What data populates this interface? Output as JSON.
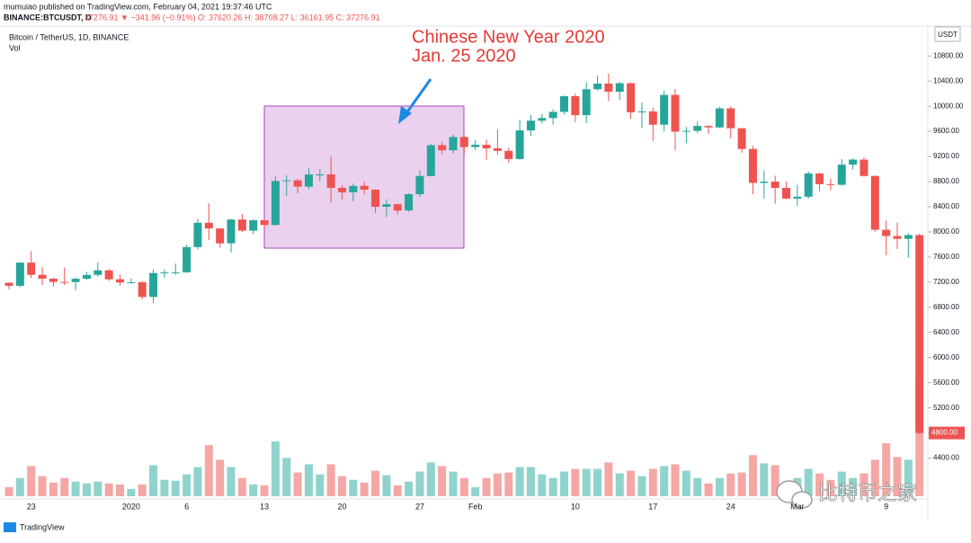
{
  "header": {
    "publisher": "mumuiao published on TradingView.com, February 04, 2021 19:37:46 UTC",
    "symbol": "BINANCE:BTCUSDT, D",
    "quote": "37276.91 ▼ −341.96 (−0.91%) O: 37620.26 H: 38708.27 L: 36161.95 C: 37276.91"
  },
  "chart_data": {
    "type": "candlestick",
    "title": "Bitcoin / TetherUS, 1D, BINANCE",
    "volume_label": "Vol",
    "currency": "USDT",
    "annotation": [
      "Chinese New Year 2020",
      "Jan. 25 2020"
    ],
    "categories": [
      null,
      null,
      "23",
      null,
      null,
      null,
      null,
      null,
      null,
      null,
      null,
      "2020",
      null,
      null,
      null,
      null,
      "6",
      null,
      null,
      null,
      null,
      null,
      null,
      "13",
      null,
      null,
      null,
      null,
      null,
      null,
      "20",
      null,
      null,
      null,
      null,
      null,
      null,
      "27",
      null,
      null,
      null,
      null,
      "Feb",
      null,
      null,
      null,
      null,
      null,
      null,
      null,
      null,
      "10",
      null,
      null,
      null,
      null,
      null,
      null,
      "17",
      null,
      null,
      null,
      null,
      null,
      null,
      "24",
      null,
      null,
      null,
      null,
      null,
      "Mar",
      null,
      null,
      null,
      null,
      null,
      null,
      null,
      "9",
      null,
      null,
      null
    ],
    "open": [
      7191,
      7142,
      7511,
      7317,
      7255,
      7204,
      7202,
      7254,
      7316,
      7388,
      7246,
      7195,
      7200,
      6965,
      7345,
      7354,
      7358,
      7758,
      8145,
      8055,
      7818,
      8197,
      8020,
      8185,
      8110,
      8810,
      8821,
      8720,
      8913,
      8915,
      8701,
      8631,
      8732,
      8672,
      8400,
      8440,
      8340,
      8600,
      8890,
      9380,
      9299,
      9510,
      9350,
      9387,
      9330,
      9290,
      9160,
      9615,
      9770,
      9812,
      9910,
      10160,
      9858,
      10270,
      10360,
      10230,
      10366,
      9904,
      9917,
      9706,
      10180,
      9596,
      9608,
      9686,
      9663,
      9966,
      9650,
      9320,
      8780,
      8800,
      8700,
      8530,
      8560,
      8930,
      8760,
      8750,
      9070,
      9150,
      8890,
      8034,
      7935,
      7890,
      7950
    ],
    "high": [
      7196,
      7518,
      7695,
      7436,
      7271,
      7435,
      7275,
      7365,
      7518,
      7409,
      7322,
      7255,
      7212,
      7406,
      7404,
      7495,
      7795,
      8207,
      8455,
      8055,
      8200,
      8286,
      8197,
      8196,
      8880,
      8900,
      8846,
      9012,
      9000,
      9198,
      8744,
      8770,
      8800,
      8677,
      8520,
      8450,
      8615,
      8979,
      9400,
      9440,
      9550,
      9530,
      9460,
      9470,
      9630,
      9340,
      9780,
      9860,
      9880,
      9950,
      10169,
      10200,
      10380,
      10490,
      10520,
      10390,
      10380,
      10060,
      9980,
      10250,
      10275,
      9670,
      9760,
      9700,
      9990,
      9999,
      9650,
      9370,
      8975,
      8895,
      8800,
      8750,
      8960,
      8940,
      8850,
      9160,
      9170,
      9190,
      8900,
      8180,
      8150,
      7980,
      7970
    ],
    "low": [
      7086,
      7119,
      7265,
      7157,
      7128,
      7157,
      7076,
      7238,
      7288,
      7220,
      7145,
      7175,
      6924,
      6871,
      7272,
      7318,
      7346,
      7723,
      7870,
      7750,
      7672,
      8000,
      7969,
      8055,
      8105,
      8574,
      8612,
      8680,
      8811,
      8466,
      8520,
      8490,
      8600,
      8303,
      8236,
      8280,
      8322,
      8560,
      8885,
      9240,
      9250,
      9250,
      9300,
      9150,
      9230,
      9100,
      9150,
      9530,
      9728,
      9705,
      9870,
      9746,
      9730,
      10250,
      10080,
      10100,
      9800,
      9650,
      9450,
      9600,
      9300,
      9410,
      9570,
      9560,
      9650,
      9490,
      9260,
      8600,
      8530,
      8450,
      8520,
      8410,
      8530,
      8650,
      8660,
      8740,
      8990,
      8880,
      8000,
      7630,
      7730,
      7590,
      4776
    ],
    "close": [
      7142,
      7511,
      7317,
      7255,
      7204,
      7202,
      7254,
      7316,
      7388,
      7246,
      7195,
      7200,
      6965,
      7345,
      7354,
      7358,
      7758,
      8145,
      8055,
      7818,
      8197,
      8020,
      8185,
      8110,
      8810,
      8821,
      8720,
      8913,
      8915,
      8701,
      8631,
      8732,
      8672,
      8400,
      8440,
      8340,
      8600,
      8890,
      9380,
      9299,
      9510,
      9350,
      9387,
      9330,
      9290,
      9160,
      9615,
      9770,
      9812,
      9910,
      10160,
      9858,
      10270,
      10360,
      10230,
      10366,
      9904,
      9917,
      9706,
      10180,
      9596,
      9608,
      9686,
      9663,
      9966,
      9650,
      9320,
      8780,
      8800,
      8700,
      8530,
      8560,
      8930,
      8760,
      8750,
      9070,
      9150,
      8890,
      8034,
      7935,
      7890,
      7950,
      4800
    ],
    "volume": [
      10000,
      20000,
      33000,
      22000,
      15000,
      20000,
      16000,
      14000,
      16000,
      14000,
      13000,
      8000,
      13000,
      34000,
      18000,
      17000,
      24000,
      32000,
      56000,
      40000,
      32000,
      20000,
      13000,
      12000,
      60000,
      42000,
      26000,
      35000,
      24000,
      35000,
      22000,
      18000,
      15000,
      28000,
      23000,
      12000,
      16000,
      27000,
      37000,
      33000,
      27000,
      20000,
      10000,
      20000,
      25000,
      26000,
      32000,
      32000,
      24000,
      20000,
      27000,
      30000,
      30000,
      30000,
      37000,
      25000,
      28000,
      22000,
      30000,
      33000,
      35000,
      28000,
      20000,
      14000,
      20000,
      25000,
      26000,
      45000,
      36000,
      34000,
      15000,
      20000,
      30000,
      25000,
      18000,
      27000,
      20000,
      25000,
      40000,
      58000,
      43000,
      40000,
      130000
    ],
    "up_color": "#26a69a",
    "down_color": "#ef5350",
    "volume_up_color": "#8fd3cc",
    "volume_down_color": "#f5a7a5",
    "last_label": "4800.00",
    "ylim": [
      3750,
      11290
    ],
    "yticks": [
      {
        "value": 4400,
        "label": "4400.00"
      },
      {
        "value": 4800,
        "label": "4800.00"
      },
      {
        "value": 5200,
        "label": "5200.00"
      },
      {
        "value": 5600,
        "label": "5600.00"
      },
      {
        "value": 6000,
        "label": "6000.00"
      },
      {
        "value": 6400,
        "label": "6400.00"
      },
      {
        "value": 6800,
        "label": "6800.00"
      },
      {
        "value": 7200,
        "label": "7200.00"
      },
      {
        "value": 7600,
        "label": "7600.00"
      },
      {
        "value": 8000,
        "label": "8000.00"
      },
      {
        "value": 8400,
        "label": "8400.00"
      },
      {
        "value": 8800,
        "label": "8800.00"
      },
      {
        "value": 9200,
        "label": "9200.00"
      },
      {
        "value": 9600,
        "label": "9600.00"
      },
      {
        "value": 10000,
        "label": "10000.00"
      },
      {
        "value": 10400,
        "label": "10400.00"
      },
      {
        "value": 10800,
        "label": "10800.00"
      }
    ],
    "grid": false
  },
  "watermark": "比特币之家",
  "footer": {
    "brand": "TradingView"
  }
}
